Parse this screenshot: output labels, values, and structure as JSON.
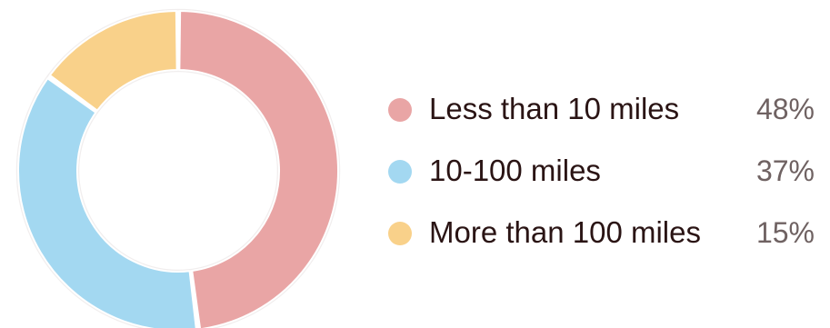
{
  "chart_data": {
    "type": "pie",
    "variant": "donut",
    "categories": [
      "Less than 10 miles",
      "10-100 miles",
      "More than 100 miles"
    ],
    "values": [
      48,
      37,
      15
    ],
    "value_labels": [
      "48%",
      "37%",
      "15%"
    ],
    "colors": [
      "#e9a5a5",
      "#a3d8f1",
      "#f9d18a"
    ],
    "legend_position": "right",
    "title": "",
    "start": "top",
    "direction": "clockwise"
  }
}
